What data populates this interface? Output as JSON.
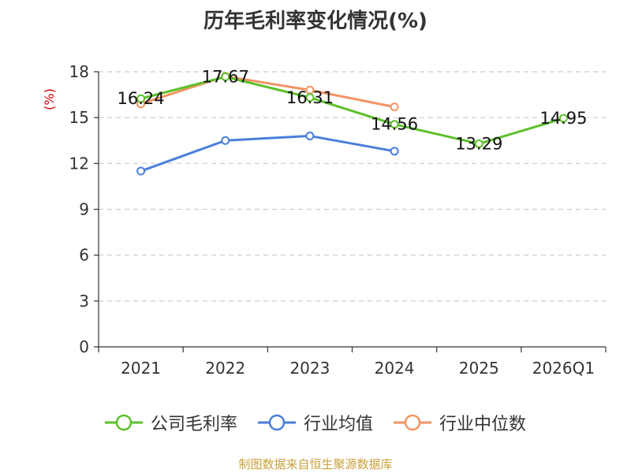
{
  "chart_data": {
    "type": "line",
    "title": "历年毛利率变化情况(%)",
    "ylabel": "(%)",
    "ylim": [
      0,
      18
    ],
    "yticks": [
      0,
      3,
      6,
      9,
      12,
      15,
      18
    ],
    "grid": true,
    "legend_position": "bottom",
    "categories": [
      "2021",
      "2022",
      "2023",
      "2024",
      "2025",
      "2026Q1"
    ],
    "series": [
      {
        "name": "公司毛利率",
        "color": "#5cc02a",
        "values": [
          16.24,
          17.67,
          16.31,
          14.56,
          13.29,
          14.95
        ],
        "labels": [
          "16.24",
          "17.67",
          "16.31",
          "14.56",
          "13.29",
          "14.95"
        ]
      },
      {
        "name": "行业均值",
        "color": "#4a7fdc",
        "values": [
          11.5,
          13.5,
          13.8,
          12.8,
          null,
          null
        ]
      },
      {
        "name": "行业中位数",
        "color": "#f39463",
        "values": [
          15.9,
          17.7,
          16.8,
          15.7,
          null,
          null
        ]
      }
    ],
    "source": "制图数据来自恒生聚源数据库"
  }
}
